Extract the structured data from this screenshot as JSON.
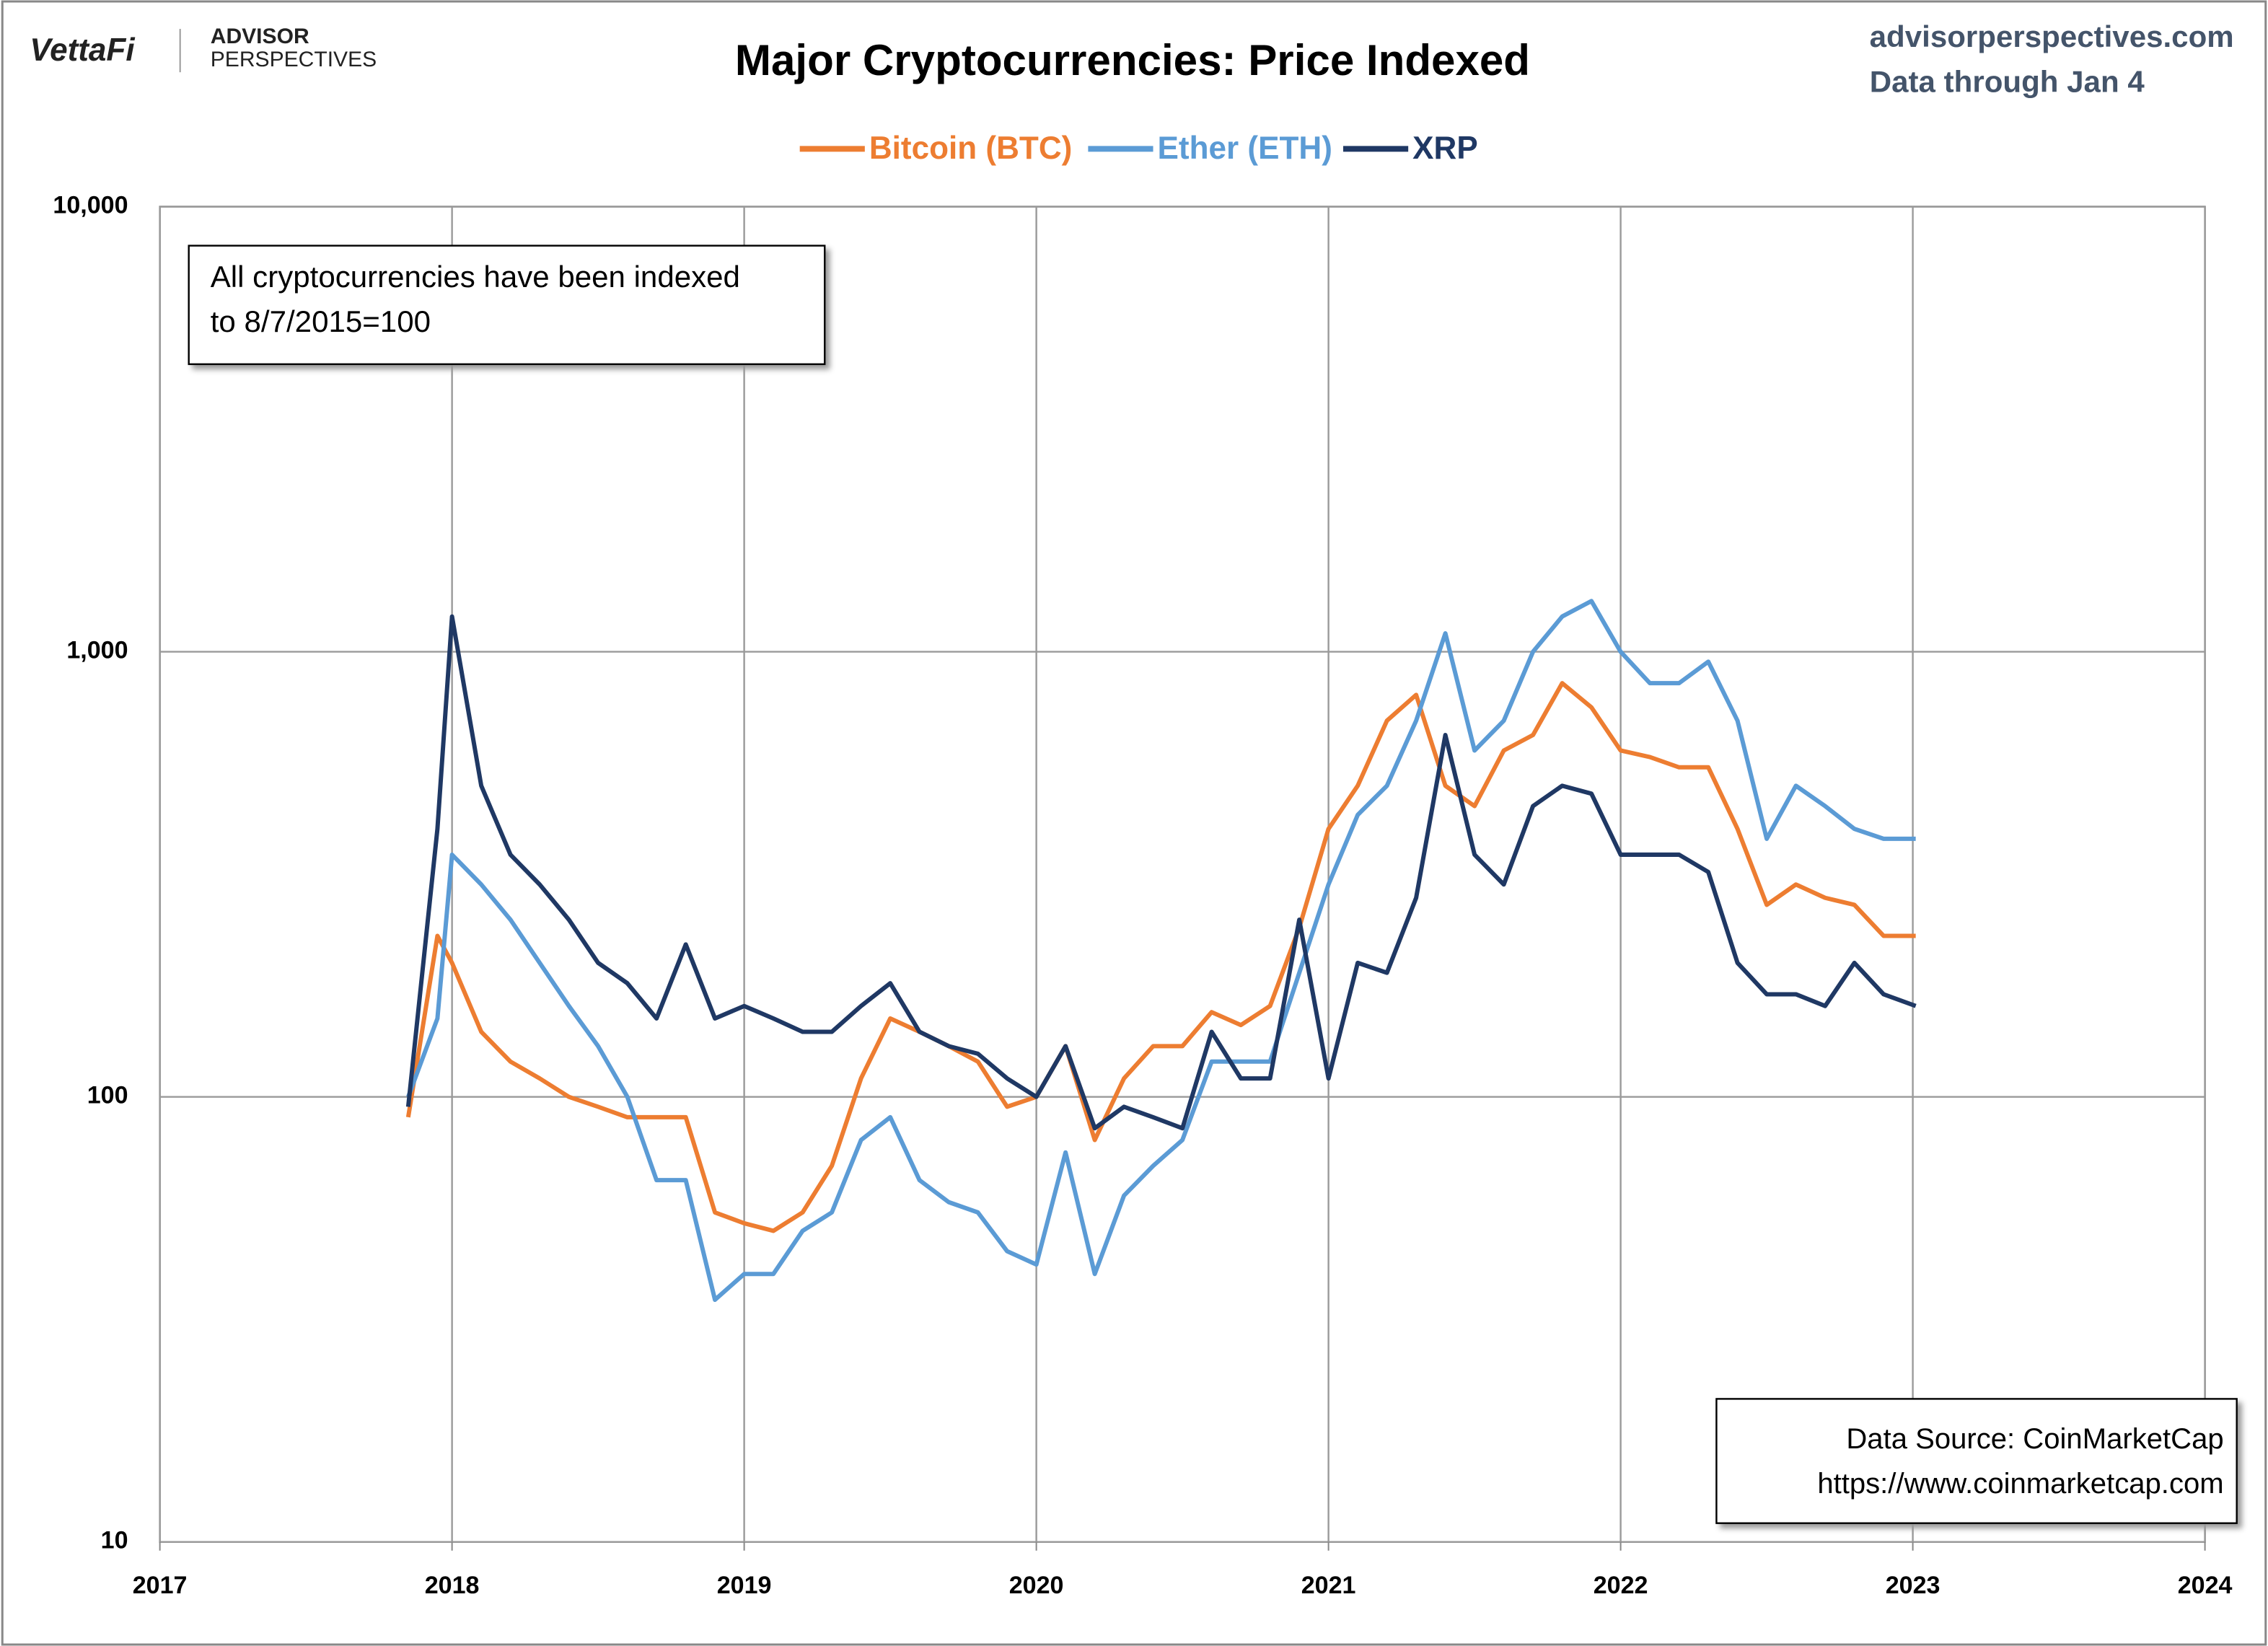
{
  "chart_data": {
    "type": "line",
    "title": "Major Cryptocurrencies: Price Indexed",
    "logo": "VettaFi",
    "brand_top": "ADVISOR",
    "brand_bottom": "PERSPECTIVES",
    "site": "advisorperspectives.com",
    "subtitle": "Data through Jan 4",
    "annotation": [
      "All cryptocurrencies have been indexed",
      "to 8/7/2015=100"
    ],
    "source": [
      "Data Source: CoinMarketCap",
      "https://www.coinmarketcap.com"
    ],
    "log_scale": true,
    "grid": true,
    "legend": "top",
    "xlim": [
      2017,
      2024
    ],
    "xticks": [
      2017,
      2018,
      2019,
      2020,
      2021,
      2022,
      2023,
      2024
    ],
    "ylim": [
      10,
      10000
    ],
    "yticks": [
      10,
      100,
      {
        "value": 1000,
        "label": "1,000"
      },
      {
        "value": 10000,
        "label": "10,000"
      }
    ],
    "x": [
      2017.85,
      2017.95,
      2018.0,
      2018.1,
      2018.2,
      2018.3,
      2018.4,
      2018.5,
      2018.6,
      2018.7,
      2018.8,
      2018.9,
      2019.0,
      2019.1,
      2019.2,
      2019.3,
      2019.4,
      2019.5,
      2019.6,
      2019.7,
      2019.8,
      2019.9,
      2020.0,
      2020.1,
      2020.2,
      2020.3,
      2020.4,
      2020.5,
      2020.6,
      2020.7,
      2020.8,
      2020.9,
      2021.0,
      2021.1,
      2021.2,
      2021.3,
      2021.4,
      2021.5,
      2021.6,
      2021.7,
      2021.8,
      2021.9,
      2022.0,
      2022.1,
      2022.2,
      2022.3,
      2022.4,
      2022.5,
      2022.6,
      2022.7,
      2022.8,
      2022.9,
      2023.01
    ],
    "series": [
      {
        "name": "Bitcoin (BTC)",
        "color": "#ed7d31",
        "values": [
          90,
          230,
          200,
          140,
          120,
          110,
          100,
          95,
          90,
          90,
          90,
          55,
          52,
          50,
          55,
          70,
          110,
          150,
          140,
          130,
          120,
          95,
          100,
          130,
          80,
          110,
          130,
          130,
          155,
          145,
          160,
          240,
          400,
          500,
          700,
          800,
          500,
          450,
          600,
          650,
          850,
          750,
          600,
          580,
          550,
          550,
          400,
          270,
          300,
          280,
          270,
          230,
          230
        ]
      },
      {
        "name": "Ether (ETH)",
        "color": "#5b9bd5",
        "values": [
          100,
          150,
          350,
          300,
          250,
          200,
          160,
          130,
          100,
          65,
          65,
          35,
          40,
          40,
          50,
          55,
          80,
          90,
          65,
          58,
          55,
          45,
          42,
          75,
          40,
          60,
          70,
          80,
          120,
          120,
          120,
          190,
          300,
          430,
          500,
          700,
          1100,
          600,
          700,
          1000,
          1200,
          1300,
          1000,
          850,
          850,
          950,
          700,
          380,
          500,
          450,
          400,
          380,
          380
        ]
      },
      {
        "name": "XRP",
        "color": "#1f3864",
        "values": [
          95,
          400,
          1200,
          500,
          350,
          300,
          250,
          200,
          180,
          150,
          220,
          150,
          160,
          150,
          140,
          140,
          160,
          180,
          140,
          130,
          125,
          110,
          100,
          130,
          85,
          95,
          90,
          85,
          140,
          110,
          110,
          250,
          110,
          200,
          190,
          280,
          650,
          350,
          300,
          450,
          500,
          480,
          350,
          350,
          350,
          320,
          200,
          170,
          170,
          160,
          200,
          170,
          160
        ]
      }
    ]
  }
}
